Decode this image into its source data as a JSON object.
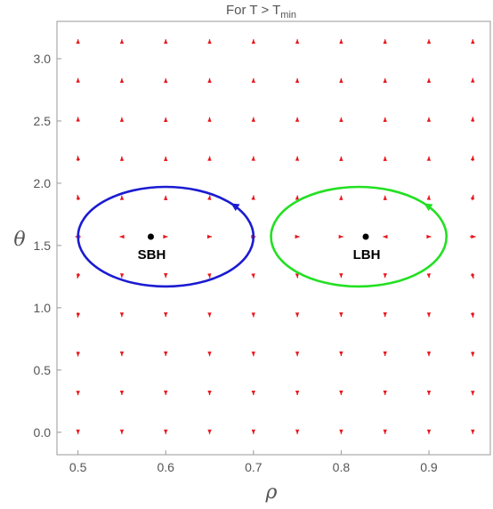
{
  "chart_data": {
    "type": "vector-field",
    "title": "For  T > T",
    "title_subscript": "min",
    "xlabel": "ρ",
    "ylabel": "θ",
    "xlim": [
      0.476,
      0.97
    ],
    "ylim": [
      -0.18,
      3.3
    ],
    "x_ticks": [
      {
        "v": 0.5,
        "label": "0.5"
      },
      {
        "v": 0.6,
        "label": "0.6"
      },
      {
        "v": 0.7,
        "label": "0.7"
      },
      {
        "v": 0.8,
        "label": "0.8"
      },
      {
        "v": 0.9,
        "label": "0.9"
      }
    ],
    "y_ticks": [
      {
        "v": 0.0,
        "label": "0.0"
      },
      {
        "v": 0.5,
        "label": "0.5"
      },
      {
        "v": 1.0,
        "label": "1.0"
      },
      {
        "v": 1.5,
        "label": "1.5"
      },
      {
        "v": 2.0,
        "label": "2.0"
      },
      {
        "v": 2.5,
        "label": "2.5"
      },
      {
        "v": 3.0,
        "label": "3.0"
      }
    ],
    "grid": false,
    "field": {
      "color": "#e8151b",
      "x_range": [
        0.5,
        0.95
      ],
      "x_step": 0.05,
      "y_range": [
        0.0,
        3.14159
      ],
      "y_step": 0.314159,
      "points": [
        {
          "x": 0.583,
          "y": 1.5708,
          "label": "SBH",
          "color": "#000000"
        },
        {
          "x": 0.828,
          "y": 1.5708,
          "label": "LBH",
          "color": "#000000"
        }
      ]
    },
    "contours": [
      {
        "name": "SBH contour",
        "color": "#1b1bd2",
        "center": [
          0.6,
          1.5708
        ],
        "rx": 0.1,
        "ry": 0.4,
        "arrow_angle_deg": 42
      },
      {
        "name": "LBH contour",
        "color": "#22e022",
        "center": [
          0.82,
          1.5708
        ],
        "rx": 0.1,
        "ry": 0.4,
        "arrow_angle_deg": 42
      }
    ]
  }
}
